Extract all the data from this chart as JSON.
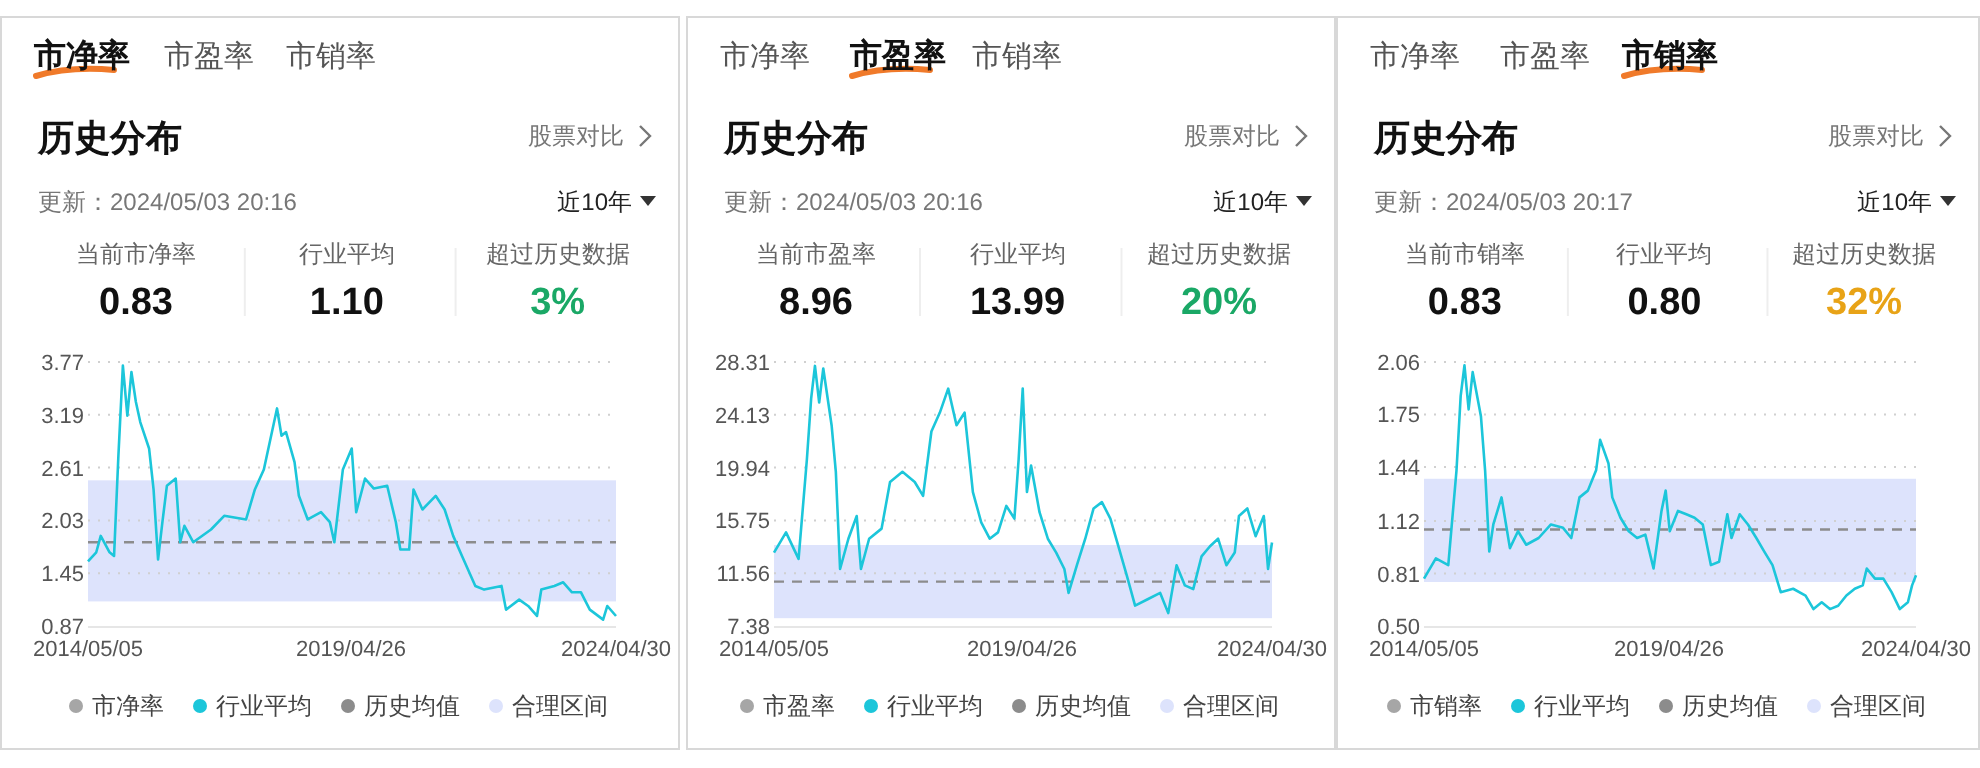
{
  "chart_data": [
    {
      "type": "line",
      "title": "历史分布",
      "annotations": [
        "市净率",
        "市盈率",
        "市销率",
        "股票对比",
        "更新：2024/05/03 20:16",
        "近10年",
        "当前市净率",
        "0.83",
        "行业平均",
        "1.10",
        "超过历史数据",
        "3%"
      ],
      "x": [
        "2014-05-05",
        "2014-07",
        "2014-08",
        "2014-10",
        "2014-11",
        "2014-12",
        "2015-01",
        "2015-02",
        "2015-03",
        "2015-04",
        "2015-05",
        "2015-07",
        "2015-08",
        "2015-09",
        "2015-10",
        "2015-11",
        "2016-01",
        "2016-02",
        "2016-03",
        "2016-05",
        "2016-09",
        "2016-12",
        "2017-05",
        "2017-07",
        "2017-09",
        "2017-12",
        "2018-01",
        "2018-02",
        "2018-04",
        "2018-05",
        "2018-07",
        "2018-10",
        "2018-12",
        "2019-01",
        "2019-03",
        "2019-05",
        "2019-06",
        "2019-08",
        "2019-10",
        "2020-01",
        "2020-03",
        "2020-04",
        "2020-06",
        "2020-07",
        "2020-09",
        "2020-12",
        "2021-02",
        "2021-04",
        "2021-06",
        "2021-09",
        "2021-11",
        "2022-03",
        "2022-04",
        "2022-07",
        "2022-09",
        "2022-11",
        "2022-12",
        "2023-03",
        "2023-05",
        "2023-07",
        "2023-09",
        "2023-11",
        "2024-02",
        "2024-03",
        "2024-04-30"
      ],
      "series": [
        {
          "name": "市净率",
          "color": "#a6a6a6",
          "values": [
            null,
            null,
            null,
            null,
            null,
            null,
            null,
            null,
            null,
            null,
            null,
            null,
            null,
            null,
            null,
            null,
            null,
            null,
            null,
            null,
            null,
            null,
            null,
            null,
            null,
            null,
            null,
            null,
            null,
            null,
            null,
            null,
            null,
            null,
            null,
            null,
            null,
            null,
            null,
            null,
            null,
            null,
            null,
            null,
            null,
            null,
            null,
            null,
            null,
            null,
            null,
            null,
            null,
            null,
            null,
            null,
            null,
            null,
            null,
            null,
            null,
            null,
            null,
            null,
            null
          ]
        },
        {
          "name": "行业平均",
          "color": "#1cc6da",
          "values": [
            1.58,
            1.68,
            1.86,
            1.68,
            1.64,
            2.74,
            3.73,
            3.18,
            3.66,
            3.33,
            3.11,
            2.82,
            2.37,
            1.6,
            2.01,
            2.41,
            2.49,
            1.79,
            1.97,
            1.79,
            1.93,
            2.08,
            2.04,
            2.37,
            2.59,
            3.26,
            2.96,
            3.0,
            2.67,
            2.3,
            2.04,
            2.12,
            2.01,
            1.79,
            2.59,
            2.82,
            2.12,
            2.49,
            2.38,
            2.41,
            2.01,
            1.71,
            1.71,
            2.37,
            2.15,
            2.3,
            2.15,
            1.86,
            1.64,
            1.31,
            1.27,
            1.31,
            1.05,
            1.16,
            1.09,
            0.98,
            1.27,
            1.31,
            1.35,
            1.24,
            1.24,
            1.05,
            0.94,
            1.09,
            0.98
          ]
        }
      ],
      "ref_lines": [
        {
          "axis": "y",
          "value": 1.79,
          "label": "历史均值",
          "color": "#8c8c8c",
          "line_style": "dashed"
        }
      ],
      "bands": [
        {
          "axis": "y",
          "from": 1.14,
          "to": 2.47,
          "label": "合理区间",
          "color": "#dde3fc"
        }
      ],
      "xlim": [
        "2014-05-05",
        "2024-04-30"
      ],
      "xticks": [
        {
          "value": "2014-05-05",
          "label": "2014/05/05"
        },
        {
          "value": "2019-04-26",
          "label": "2019/04/26"
        },
        {
          "value": "2024-04-30",
          "label": "2024/04/30"
        }
      ],
      "ylim": [
        0.87,
        3.77
      ],
      "yticks": [
        0.87,
        1.45,
        2.03,
        2.61,
        3.19,
        3.77
      ],
      "grid": "y",
      "legend": "bottom"
    },
    {
      "type": "line",
      "title": "历史分布",
      "annotations": [
        "市净率",
        "市盈率",
        "市销率",
        "股票对比",
        "更新：2024/05/03 20:16",
        "近10年",
        "当前市盈率",
        "8.96",
        "行业平均",
        "13.99",
        "超过历史数据",
        "20%"
      ],
      "x": [
        "2014-05-05",
        "2014-08",
        "2014-11",
        "2015-01",
        "2015-02",
        "2015-03",
        "2015-04",
        "2015-05",
        "2015-07",
        "2015-08",
        "2015-09",
        "2015-11",
        "2016-01",
        "2016-02",
        "2016-04",
        "2016-07",
        "2016-09",
        "2016-12",
        "2017-03",
        "2017-05",
        "2017-07",
        "2017-09",
        "2017-11",
        "2018-01",
        "2018-03",
        "2018-05",
        "2018-07",
        "2018-09",
        "2018-11",
        "2019-01",
        "2019-03",
        "2019-04",
        "2019-05",
        "2019-06",
        "2019-07",
        "2019-09",
        "2019-11",
        "2020-01",
        "2020-03",
        "2020-04",
        "2020-06",
        "2020-08",
        "2020-10",
        "2020-12",
        "2021-02",
        "2021-04",
        "2021-06",
        "2021-08",
        "2021-11",
        "2022-02",
        "2022-04",
        "2022-06",
        "2022-08",
        "2022-10",
        "2022-12",
        "2023-02",
        "2023-04",
        "2023-06",
        "2023-08",
        "2023-09",
        "2023-11",
        "2024-01",
        "2024-03",
        "2024-04",
        "2024-04-30"
      ],
      "series": [
        {
          "name": "市盈率",
          "color": "#a6a6a6",
          "values": [
            null,
            null,
            null,
            null,
            null,
            null,
            null,
            null,
            null,
            null,
            null,
            null,
            null,
            null,
            null,
            null,
            null,
            null,
            null,
            null,
            null,
            null,
            null,
            null,
            null,
            null,
            null,
            null,
            null,
            null,
            null,
            null,
            null,
            null,
            null,
            null,
            null,
            null,
            null,
            null,
            null,
            null,
            null,
            null,
            null,
            null,
            null,
            null,
            null,
            null,
            null,
            null,
            null,
            null,
            null,
            null,
            null,
            null,
            null,
            null,
            null,
            null,
            null,
            null,
            null
          ]
        },
        {
          "name": "行业平均",
          "color": "#1cc6da",
          "values": [
            13.2,
            14.8,
            12.7,
            20.6,
            25.4,
            28.0,
            25.1,
            27.8,
            23.3,
            19.6,
            11.9,
            14.3,
            16.1,
            11.9,
            14.3,
            15.1,
            18.8,
            19.6,
            18.8,
            17.7,
            22.8,
            24.3,
            26.2,
            23.3,
            24.3,
            18.0,
            15.6,
            14.3,
            14.8,
            16.9,
            15.9,
            20.6,
            26.2,
            18.0,
            20.1,
            16.4,
            14.3,
            13.2,
            11.9,
            10.0,
            12.2,
            14.3,
            16.7,
            17.2,
            15.9,
            13.7,
            11.4,
            9.0,
            9.5,
            10.0,
            8.4,
            12.2,
            10.6,
            10.3,
            12.9,
            13.7,
            14.3,
            12.2,
            13.2,
            16.1,
            16.7,
            14.5,
            16.1,
            11.9,
            14.0
          ]
        }
      ],
      "ref_lines": [
        {
          "axis": "y",
          "value": 10.9,
          "label": "历史均值",
          "color": "#8c8c8c",
          "line_style": "dashed"
        }
      ],
      "bands": [
        {
          "axis": "y",
          "from": 8.0,
          "to": 13.8,
          "label": "合理区间",
          "color": "#dde3fc"
        }
      ],
      "xlim": [
        "2014-05-05",
        "2024-04-30"
      ],
      "xticks": [
        {
          "value": "2014-05-05",
          "label": "2014/05/05"
        },
        {
          "value": "2019-04-26",
          "label": "2019/04/26"
        },
        {
          "value": "2024-04-30",
          "label": "2024/04/30"
        }
      ],
      "ylim": [
        7.38,
        28.31
      ],
      "yticks": [
        7.38,
        11.56,
        15.75,
        19.94,
        24.13,
        28.31
      ],
      "grid": "y",
      "legend": "bottom"
    },
    {
      "type": "line",
      "title": "历史分布",
      "annotations": [
        "市净率",
        "市盈率",
        "市销率",
        "股票对比",
        "更新：2024/05/03 20:17",
        "近10年",
        "当前市销率",
        "0.83",
        "行业平均",
        "0.80",
        "超过历史数据",
        "32%"
      ],
      "x": [
        "2014-05-05",
        "2014-08",
        "2014-11",
        "2015-01",
        "2015-02",
        "2015-03",
        "2015-04",
        "2015-05",
        "2015-07",
        "2015-08",
        "2015-09",
        "2015-10",
        "2015-12",
        "2016-02",
        "2016-04",
        "2016-06",
        "2016-09",
        "2016-12",
        "2017-03",
        "2017-05",
        "2017-07",
        "2017-09",
        "2017-11",
        "2017-12",
        "2018-02",
        "2018-03",
        "2018-05",
        "2018-07",
        "2018-09",
        "2018-11",
        "2019-01",
        "2019-03",
        "2019-04",
        "2019-05",
        "2019-07",
        "2019-09",
        "2019-11",
        "2020-01",
        "2020-03",
        "2020-05",
        "2020-07",
        "2020-08",
        "2020-10",
        "2020-12",
        "2021-02",
        "2021-04",
        "2021-06",
        "2021-08",
        "2021-11",
        "2022-02",
        "2022-04",
        "2022-06",
        "2022-08",
        "2022-10",
        "2022-12",
        "2023-02",
        "2023-04",
        "2023-05",
        "2023-07",
        "2023-09",
        "2023-11",
        "2024-01",
        "2024-03",
        "2024-04",
        "2024-04-30"
      ],
      "series": [
        {
          "name": "市销率",
          "color": "#a6a6a6",
          "values": [
            null,
            null,
            null,
            null,
            null,
            null,
            null,
            null,
            null,
            null,
            null,
            null,
            null,
            null,
            null,
            null,
            null,
            null,
            null,
            null,
            null,
            null,
            null,
            null,
            null,
            null,
            null,
            null,
            null,
            null,
            null,
            null,
            null,
            null,
            null,
            null,
            null,
            null,
            null,
            null,
            null,
            null,
            null,
            null,
            null,
            null,
            null,
            null,
            null,
            null,
            null,
            null,
            null,
            null,
            null,
            null,
            null,
            null,
            null,
            null,
            null,
            null,
            null,
            null,
            null
          ]
        },
        {
          "name": "行业平均",
          "color": "#1cc6da",
          "values": [
            0.78,
            0.9,
            0.86,
            1.42,
            1.86,
            2.04,
            1.78,
            2.0,
            1.74,
            1.42,
            0.94,
            1.1,
            1.26,
            0.96,
            1.06,
            0.98,
            1.02,
            1.1,
            1.08,
            1.02,
            1.26,
            1.3,
            1.42,
            1.6,
            1.46,
            1.26,
            1.14,
            1.06,
            1.02,
            1.04,
            0.84,
            1.18,
            1.3,
            1.06,
            1.18,
            1.16,
            1.14,
            1.1,
            0.86,
            0.88,
            1.16,
            1.02,
            1.16,
            1.1,
            1.02,
            0.94,
            0.86,
            0.7,
            0.72,
            0.68,
            0.6,
            0.64,
            0.6,
            0.62,
            0.68,
            0.72,
            0.74,
            0.84,
            0.78,
            0.78,
            0.7,
            0.6,
            0.64,
            0.74,
            0.8
          ]
        }
      ],
      "ref_lines": [
        {
          "axis": "y",
          "value": 1.07,
          "label": "历史均值",
          "color": "#8c8c8c",
          "line_style": "dashed"
        }
      ],
      "bands": [
        {
          "axis": "y",
          "from": 0.76,
          "to": 1.37,
          "label": "合理区间",
          "color": "#dde3fc"
        }
      ],
      "xlim": [
        "2014-05-05",
        "2024-04-30"
      ],
      "xticks": [
        {
          "value": "2014-05-05",
          "label": "2014/05/05"
        },
        {
          "value": "2019-04-26",
          "label": "2019/04/26"
        },
        {
          "value": "2024-04-30",
          "label": "2024/04/30"
        }
      ],
      "ylim": [
        0.5,
        2.06
      ],
      "yticks": [
        {
          "value": 0.5,
          "label": "0.50"
        },
        0.81,
        1.12,
        1.44,
        1.75,
        2.06
      ],
      "grid": "y",
      "legend": "bottom"
    }
  ]
}
